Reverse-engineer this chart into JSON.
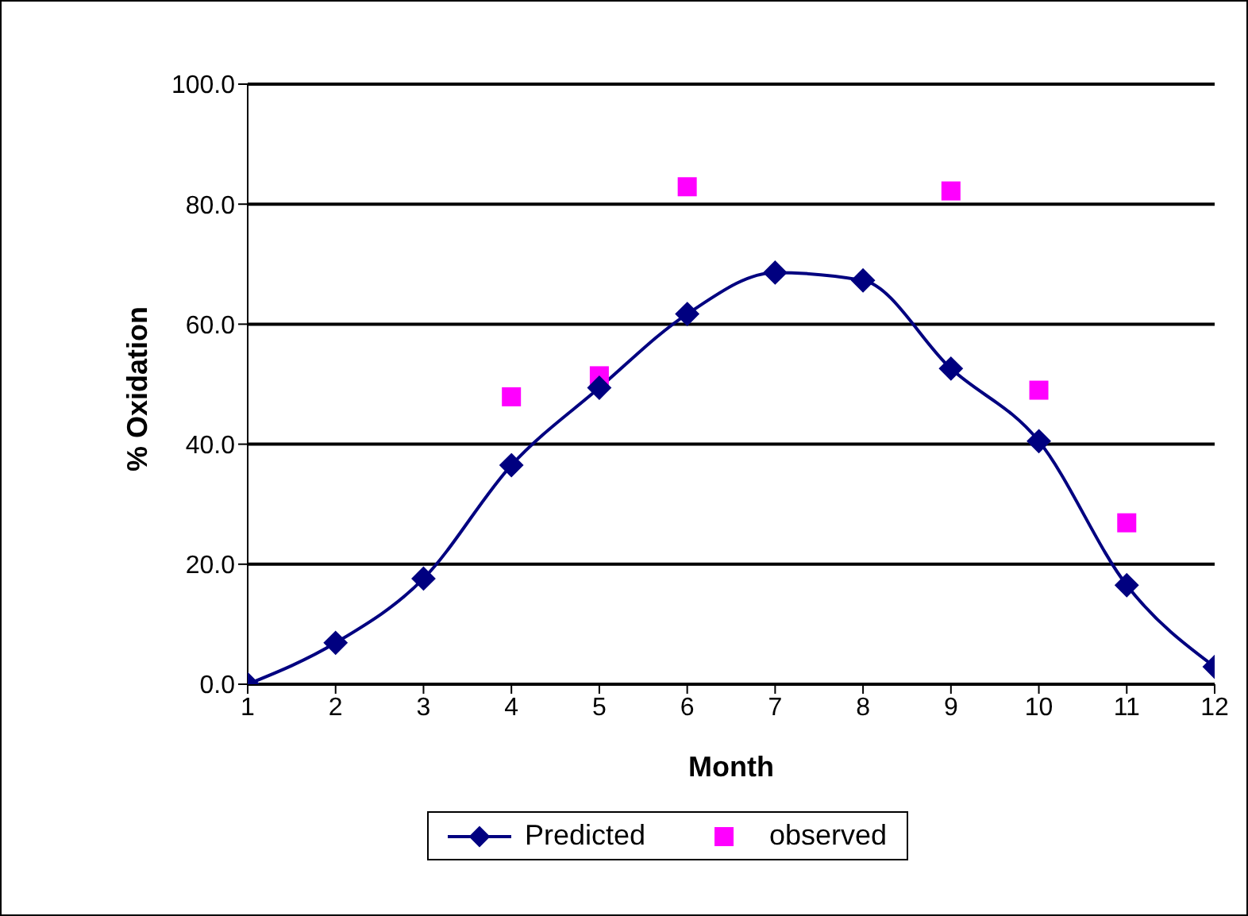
{
  "chart_data": {
    "type": "line",
    "xlabel": "Month",
    "ylabel": "% Oxidation",
    "xlim": [
      1,
      12
    ],
    "xticks": [
      1,
      2,
      3,
      4,
      5,
      6,
      7,
      8,
      9,
      10,
      11,
      12
    ],
    "ylim": [
      0,
      100
    ],
    "yticks": [
      {
        "value": 0,
        "label": "0.0"
      },
      {
        "value": 20,
        "label": "20.0"
      },
      {
        "value": 40,
        "label": "40.0"
      },
      {
        "value": 60,
        "label": "60.0"
      },
      {
        "value": 80,
        "label": "80.0"
      },
      {
        "value": 100,
        "label": "100.0"
      }
    ],
    "grid": "y",
    "legend": "bottom",
    "series": [
      {
        "name": "Predicted",
        "color": "#000080",
        "marker": "diamond",
        "x": [
          1,
          2,
          3,
          4,
          5,
          6,
          7,
          8,
          9,
          10,
          11,
          12
        ],
        "values": [
          0,
          6.9,
          17.6,
          36.5,
          49.4,
          61.7,
          68.6,
          67.3,
          52.6,
          40.5,
          16.5,
          2.9
        ]
      },
      {
        "name": "observed",
        "type": "scatter",
        "color": "#ff00ff",
        "marker": "square",
        "x": [
          4,
          5,
          6,
          9,
          10,
          11
        ],
        "values": [
          47.9,
          51.4,
          82.9,
          82.2,
          49.0,
          26.9
        ]
      }
    ]
  }
}
